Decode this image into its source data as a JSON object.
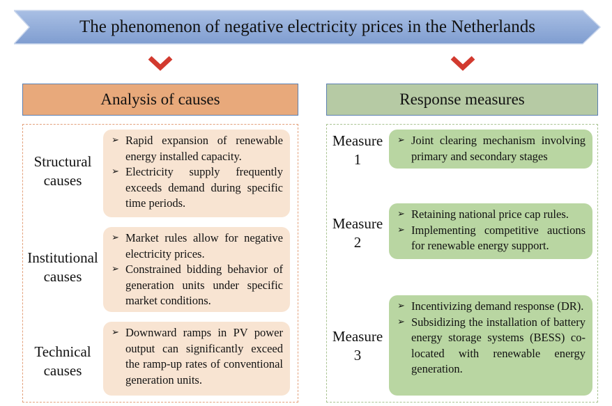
{
  "title": "The phenomenon of negative electricity prices in the Netherlands",
  "colors": {
    "banner_fill": "#8ea9d8",
    "causes_header": "#e8a97b",
    "measures_header": "#b6caa4",
    "cause_box": "#f8e4d2",
    "measure_box": "#b9d6a2",
    "chevron": "#d23a2f"
  },
  "causes": {
    "header": "Analysis of causes",
    "rows": [
      {
        "label_line1": "Structural",
        "label_line2": "causes",
        "bullets": [
          "Rapid expansion of renewable energy installed capacity.",
          "Electricity supply frequently exceeds demand during specific time periods."
        ]
      },
      {
        "label_line1": "Institutional",
        "label_line2": "causes",
        "bullets": [
          "Market rules allow for negative electricity prices.",
          "Constrained bidding behavior of generation units under specific market conditions."
        ]
      },
      {
        "label_line1": "Technical",
        "label_line2": "causes",
        "bullets": [
          "Downward ramps in PV power output can significantly exceed the ramp-up rates of conventional generation units."
        ]
      }
    ]
  },
  "measures": {
    "header": "Response measures",
    "rows": [
      {
        "label_line1": "Measure",
        "label_line2": "1",
        "bullets": [
          "Joint clearing mechanism involving primary and secondary stages"
        ]
      },
      {
        "label_line1": "Measure",
        "label_line2": "2",
        "bullets": [
          "Retaining national price cap rules.",
          "Implementing competitive auctions for renewable energy support."
        ]
      },
      {
        "label_line1": "Measure",
        "label_line2": "3",
        "bullets": [
          "Incentivizing demand response (DR).",
          "Subsidizing the installation of battery energy storage systems (BESS) co-located with renewable energy generation."
        ]
      }
    ]
  }
}
